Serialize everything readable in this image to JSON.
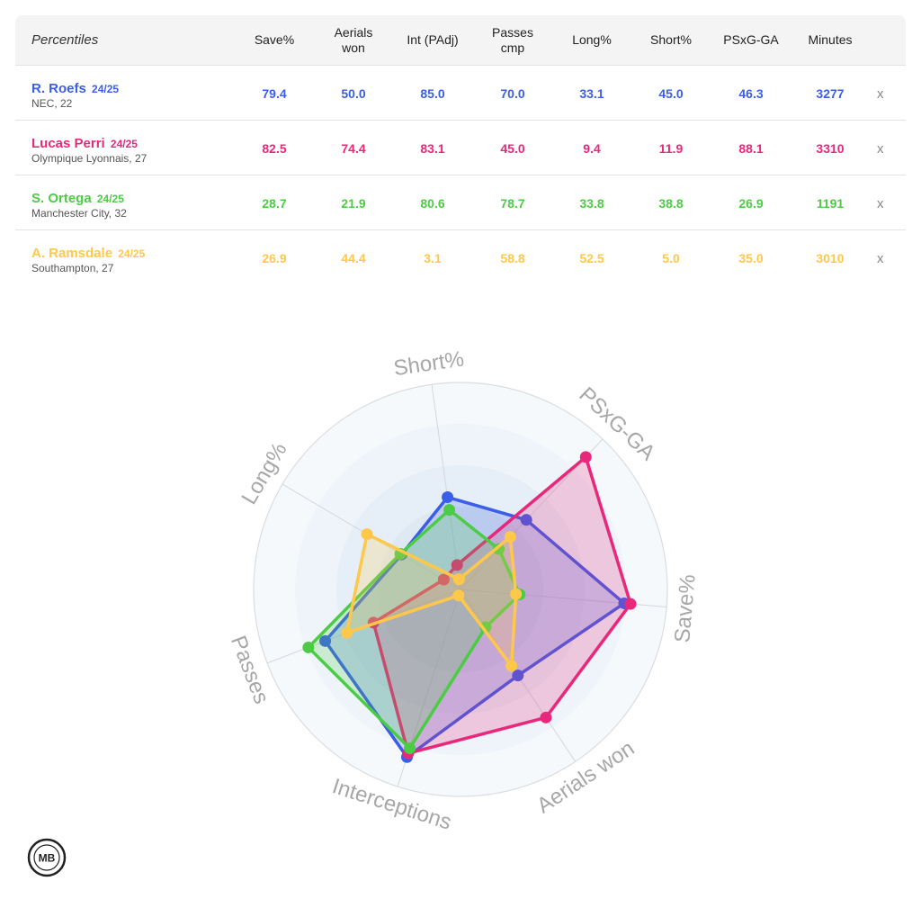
{
  "table": {
    "title": "Percentiles",
    "columns": [
      "Save%",
      "Aerials\nwon",
      "Int (PAdj)",
      "Passes\ncmp",
      "Long%",
      "Short%",
      "PSxG-GA",
      "Minutes"
    ],
    "close_label": "x"
  },
  "players": [
    {
      "name": "R. Roefs",
      "season": "24/25",
      "club": "NEC, 22",
      "color": "#3b5ee8",
      "values": [
        "79.4",
        "50.0",
        "85.0",
        "70.0",
        "33.1",
        "45.0",
        "46.3",
        "3277"
      ]
    },
    {
      "name": "Lucas Perri",
      "season": "24/25",
      "club": "Olympique Lyonnais, 27",
      "color": "#e8287a",
      "values": [
        "82.5",
        "74.4",
        "83.1",
        "45.0",
        "9.4",
        "11.9",
        "88.1",
        "3310"
      ]
    },
    {
      "name": "S. Ortega",
      "season": "24/25",
      "club": "Manchester City, 32",
      "color": "#4ccc45",
      "values": [
        "28.7",
        "21.9",
        "80.6",
        "78.7",
        "33.8",
        "38.8",
        "26.9",
        "1191"
      ]
    },
    {
      "name": "A. Ramsdale",
      "season": "24/25",
      "club": "Southampton, 27",
      "color": "#ffc84a",
      "values": [
        "26.9",
        "44.4",
        "3.1",
        "58.8",
        "52.5",
        "5.0",
        "35.0",
        "3010"
      ]
    }
  ],
  "chart_data": {
    "type": "radar",
    "axes": [
      "Short%",
      "PSxG-GA",
      "Save%",
      "Aerials won",
      "Interceptions",
      "Passes",
      "Long%"
    ],
    "range": [
      0,
      100
    ],
    "series": [
      {
        "name": "R. Roefs",
        "color": "#3b5ee8",
        "values": [
          45.0,
          46.3,
          79.4,
          50.0,
          85.0,
          70.0,
          33.1
        ]
      },
      {
        "name": "Lucas Perri",
        "color": "#e8287a",
        "values": [
          11.9,
          88.1,
          82.5,
          74.4,
          83.1,
          45.0,
          9.4
        ]
      },
      {
        "name": "S. Ortega",
        "color": "#4ccc45",
        "values": [
          38.8,
          26.9,
          28.7,
          21.9,
          80.6,
          78.7,
          33.8
        ]
      },
      {
        "name": "A. Ramsdale",
        "color": "#ffc84a",
        "values": [
          5.0,
          35.0,
          26.9,
          44.4,
          3.1,
          58.8,
          52.5
        ]
      }
    ]
  },
  "logo_text": "MB"
}
